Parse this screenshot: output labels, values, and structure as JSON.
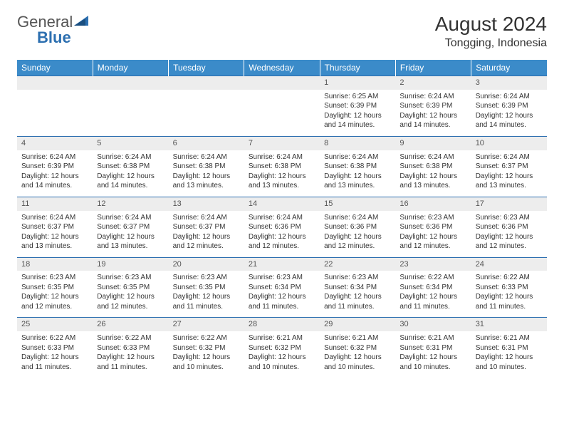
{
  "logo": {
    "text1": "General",
    "text2": "Blue"
  },
  "title": "August 2024",
  "location": "Tongging, Indonesia",
  "colors": {
    "header_bg": "#3b8bc9",
    "header_text": "#ffffff",
    "daynum_bg": "#ededed",
    "border": "#2c6fb0",
    "text": "#333333",
    "logo_gray": "#555555",
    "logo_blue": "#2c6fb0"
  },
  "fonts": {
    "title_size": 28,
    "location_size": 16,
    "header_size": 12,
    "cell_size": 10,
    "daynum_size": 11
  },
  "day_headers": [
    "Sunday",
    "Monday",
    "Tuesday",
    "Wednesday",
    "Thursday",
    "Friday",
    "Saturday"
  ],
  "weeks": [
    [
      null,
      null,
      null,
      null,
      {
        "n": "1",
        "sr": "6:25 AM",
        "ss": "6:39 PM",
        "dl": "12 hours and 14 minutes."
      },
      {
        "n": "2",
        "sr": "6:24 AM",
        "ss": "6:39 PM",
        "dl": "12 hours and 14 minutes."
      },
      {
        "n": "3",
        "sr": "6:24 AM",
        "ss": "6:39 PM",
        "dl": "12 hours and 14 minutes."
      }
    ],
    [
      {
        "n": "4",
        "sr": "6:24 AM",
        "ss": "6:39 PM",
        "dl": "12 hours and 14 minutes."
      },
      {
        "n": "5",
        "sr": "6:24 AM",
        "ss": "6:38 PM",
        "dl": "12 hours and 14 minutes."
      },
      {
        "n": "6",
        "sr": "6:24 AM",
        "ss": "6:38 PM",
        "dl": "12 hours and 13 minutes."
      },
      {
        "n": "7",
        "sr": "6:24 AM",
        "ss": "6:38 PM",
        "dl": "12 hours and 13 minutes."
      },
      {
        "n": "8",
        "sr": "6:24 AM",
        "ss": "6:38 PM",
        "dl": "12 hours and 13 minutes."
      },
      {
        "n": "9",
        "sr": "6:24 AM",
        "ss": "6:38 PM",
        "dl": "12 hours and 13 minutes."
      },
      {
        "n": "10",
        "sr": "6:24 AM",
        "ss": "6:37 PM",
        "dl": "12 hours and 13 minutes."
      }
    ],
    [
      {
        "n": "11",
        "sr": "6:24 AM",
        "ss": "6:37 PM",
        "dl": "12 hours and 13 minutes."
      },
      {
        "n": "12",
        "sr": "6:24 AM",
        "ss": "6:37 PM",
        "dl": "12 hours and 13 minutes."
      },
      {
        "n": "13",
        "sr": "6:24 AM",
        "ss": "6:37 PM",
        "dl": "12 hours and 12 minutes."
      },
      {
        "n": "14",
        "sr": "6:24 AM",
        "ss": "6:36 PM",
        "dl": "12 hours and 12 minutes."
      },
      {
        "n": "15",
        "sr": "6:24 AM",
        "ss": "6:36 PM",
        "dl": "12 hours and 12 minutes."
      },
      {
        "n": "16",
        "sr": "6:23 AM",
        "ss": "6:36 PM",
        "dl": "12 hours and 12 minutes."
      },
      {
        "n": "17",
        "sr": "6:23 AM",
        "ss": "6:36 PM",
        "dl": "12 hours and 12 minutes."
      }
    ],
    [
      {
        "n": "18",
        "sr": "6:23 AM",
        "ss": "6:35 PM",
        "dl": "12 hours and 12 minutes."
      },
      {
        "n": "19",
        "sr": "6:23 AM",
        "ss": "6:35 PM",
        "dl": "12 hours and 12 minutes."
      },
      {
        "n": "20",
        "sr": "6:23 AM",
        "ss": "6:35 PM",
        "dl": "12 hours and 11 minutes."
      },
      {
        "n": "21",
        "sr": "6:23 AM",
        "ss": "6:34 PM",
        "dl": "12 hours and 11 minutes."
      },
      {
        "n": "22",
        "sr": "6:23 AM",
        "ss": "6:34 PM",
        "dl": "12 hours and 11 minutes."
      },
      {
        "n": "23",
        "sr": "6:22 AM",
        "ss": "6:34 PM",
        "dl": "12 hours and 11 minutes."
      },
      {
        "n": "24",
        "sr": "6:22 AM",
        "ss": "6:33 PM",
        "dl": "12 hours and 11 minutes."
      }
    ],
    [
      {
        "n": "25",
        "sr": "6:22 AM",
        "ss": "6:33 PM",
        "dl": "12 hours and 11 minutes."
      },
      {
        "n": "26",
        "sr": "6:22 AM",
        "ss": "6:33 PM",
        "dl": "12 hours and 11 minutes."
      },
      {
        "n": "27",
        "sr": "6:22 AM",
        "ss": "6:32 PM",
        "dl": "12 hours and 10 minutes."
      },
      {
        "n": "28",
        "sr": "6:21 AM",
        "ss": "6:32 PM",
        "dl": "12 hours and 10 minutes."
      },
      {
        "n": "29",
        "sr": "6:21 AM",
        "ss": "6:32 PM",
        "dl": "12 hours and 10 minutes."
      },
      {
        "n": "30",
        "sr": "6:21 AM",
        "ss": "6:31 PM",
        "dl": "12 hours and 10 minutes."
      },
      {
        "n": "31",
        "sr": "6:21 AM",
        "ss": "6:31 PM",
        "dl": "12 hours and 10 minutes."
      }
    ]
  ],
  "labels": {
    "sunrise": "Sunrise: ",
    "sunset": "Sunset: ",
    "daylight": "Daylight: "
  }
}
